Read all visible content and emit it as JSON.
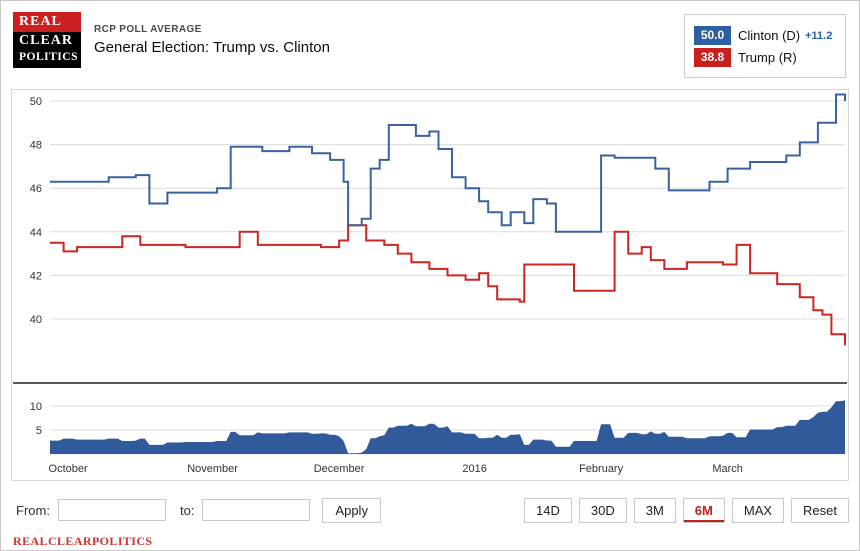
{
  "header": {
    "logo": {
      "line1": "REAL",
      "line2": "CLEAR",
      "line3": "POLITICS"
    },
    "kicker": "RCP POLL AVERAGE",
    "title": "General Election: Trump vs. Clinton"
  },
  "legend": {
    "items": [
      {
        "value": "50.0",
        "label": "Clinton (D)",
        "delta": "+11.2",
        "badge_color": "#2e5fa3"
      },
      {
        "value": "38.8",
        "label": "Trump (R)",
        "delta": "",
        "badge_color": "#c9201d"
      }
    ]
  },
  "chart_data": {
    "type": "line",
    "subtype": "step",
    "title": "General Election: Trump vs. Clinton - RCP Poll Average",
    "x_unit": "days since Oct 1, 2015",
    "x_range": [
      0,
      176
    ],
    "grid": "horizontal",
    "legend_position": "top-right",
    "y_axis_main": {
      "ticks": [
        40,
        42,
        44,
        46,
        48,
        50
      ],
      "range": [
        37.5,
        50.8
      ]
    },
    "y_axis_spread": {
      "ticks": [
        5,
        10
      ],
      "range": [
        0,
        13
      ]
    },
    "x_ticks": [
      {
        "d": 4,
        "label": "October"
      },
      {
        "d": 36,
        "label": "November"
      },
      {
        "d": 64,
        "label": "December"
      },
      {
        "d": 94,
        "label": "2016"
      },
      {
        "d": 122,
        "label": "February"
      },
      {
        "d": 150,
        "label": "March"
      }
    ],
    "series": [
      {
        "name": "Clinton (D)",
        "color": "#3a62a0",
        "final_value": 50.0,
        "points": [
          [
            0,
            46.3
          ],
          [
            13,
            46.5
          ],
          [
            19,
            46.6
          ],
          [
            22,
            45.3
          ],
          [
            26,
            45.8
          ],
          [
            37,
            46.0
          ],
          [
            40,
            47.9
          ],
          [
            47,
            47.7
          ],
          [
            53,
            47.9
          ],
          [
            58,
            47.6
          ],
          [
            62,
            47.3
          ],
          [
            65,
            46.3
          ],
          [
            66,
            44.3
          ],
          [
            69,
            44.6
          ],
          [
            71,
            46.9
          ],
          [
            73,
            47.3
          ],
          [
            75,
            48.9
          ],
          [
            81,
            48.4
          ],
          [
            84,
            48.6
          ],
          [
            86,
            47.8
          ],
          [
            89,
            46.5
          ],
          [
            92,
            46.0
          ],
          [
            95,
            45.4
          ],
          [
            97,
            44.9
          ],
          [
            100,
            44.3
          ],
          [
            102,
            44.9
          ],
          [
            105,
            44.4
          ],
          [
            107,
            45.5
          ],
          [
            110,
            45.3
          ],
          [
            112,
            44.0
          ],
          [
            122,
            47.5
          ],
          [
            125,
            47.4
          ],
          [
            134,
            46.9
          ],
          [
            137,
            45.9
          ],
          [
            146,
            46.3
          ],
          [
            150,
            46.9
          ],
          [
            155,
            47.2
          ],
          [
            163,
            47.5
          ],
          [
            166,
            48.1
          ],
          [
            170,
            49.0
          ],
          [
            174,
            50.3
          ],
          [
            176,
            50.0
          ]
        ]
      },
      {
        "name": "Trump (R)",
        "color": "#cc2522",
        "final_value": 38.8,
        "points": [
          [
            0,
            43.5
          ],
          [
            3,
            43.1
          ],
          [
            6,
            43.3
          ],
          [
            16,
            43.8
          ],
          [
            20,
            43.4
          ],
          [
            30,
            43.3
          ],
          [
            42,
            44.0
          ],
          [
            46,
            43.4
          ],
          [
            60,
            43.3
          ],
          [
            64,
            43.6
          ],
          [
            66,
            44.3
          ],
          [
            70,
            43.6
          ],
          [
            74,
            43.4
          ],
          [
            77,
            43.0
          ],
          [
            80,
            42.6
          ],
          [
            84,
            42.3
          ],
          [
            88,
            42.0
          ],
          [
            92,
            41.8
          ],
          [
            95,
            42.1
          ],
          [
            97,
            41.5
          ],
          [
            99,
            40.9
          ],
          [
            104,
            40.8
          ],
          [
            105,
            42.5
          ],
          [
            116,
            41.3
          ],
          [
            125,
            44.0
          ],
          [
            128,
            43.0
          ],
          [
            131,
            43.3
          ],
          [
            133,
            42.7
          ],
          [
            136,
            42.3
          ],
          [
            141,
            42.6
          ],
          [
            149,
            42.5
          ],
          [
            152,
            43.4
          ],
          [
            155,
            42.1
          ],
          [
            161,
            41.6
          ],
          [
            166,
            41.0
          ],
          [
            169,
            40.4
          ],
          [
            171,
            40.2
          ],
          [
            173,
            39.3
          ],
          [
            176,
            38.8
          ]
        ]
      }
    ],
    "spread_area": {
      "name": "Clinton-Trump spread",
      "fill": "#305a9a",
      "derivation": "abs(Clinton - Trump)",
      "final_value": 11.2
    }
  },
  "controls": {
    "from_label": "From:",
    "to_label": "to:",
    "from_value": "",
    "to_value": "",
    "apply_label": "Apply",
    "range_buttons": [
      {
        "label": "14D",
        "active": false
      },
      {
        "label": "30D",
        "active": false
      },
      {
        "label": "3M",
        "active": false
      },
      {
        "label": "6M",
        "active": true
      },
      {
        "label": "MAX",
        "active": false
      },
      {
        "label": "Reset",
        "active": false
      }
    ]
  },
  "footer": {
    "brand": "REALCLEARPOLITICS"
  }
}
